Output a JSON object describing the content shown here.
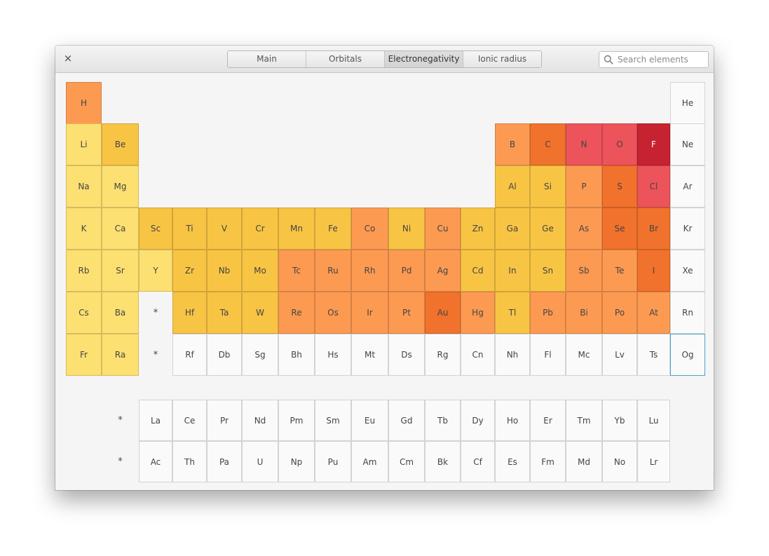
{
  "window": {
    "close_label": "×",
    "tabs": [
      {
        "label": "Main",
        "active": false
      },
      {
        "label": "Orbitals",
        "active": false
      },
      {
        "label": "Electronegativity",
        "active": true
      },
      {
        "label": "Ionic radius",
        "active": false
      }
    ],
    "search": {
      "value": "",
      "placeholder": "Search elements"
    }
  },
  "colors": {
    "pale_yellow": "#fde072",
    "yellow": "#f8c444",
    "light_orange": "#fd9a52",
    "orange": "#f1722c",
    "red_pink": "#ec535a",
    "crimson": "#c72230",
    "none": "#fafafa",
    "selected_border": "#4aa5c8"
  },
  "periodic_table": {
    "elements": [
      {
        "symbol": "H",
        "period": 1,
        "group": 1,
        "color": "light_orange"
      },
      {
        "symbol": "He",
        "period": 1,
        "group": 18,
        "color": "none"
      },
      {
        "symbol": "Li",
        "period": 2,
        "group": 1,
        "color": "pale_yellow"
      },
      {
        "symbol": "Be",
        "period": 2,
        "group": 2,
        "color": "yellow"
      },
      {
        "symbol": "B",
        "period": 2,
        "group": 13,
        "color": "light_orange"
      },
      {
        "symbol": "C",
        "period": 2,
        "group": 14,
        "color": "orange"
      },
      {
        "symbol": "N",
        "period": 2,
        "group": 15,
        "color": "red_pink"
      },
      {
        "symbol": "O",
        "period": 2,
        "group": 16,
        "color": "red_pink"
      },
      {
        "symbol": "F",
        "period": 2,
        "group": 17,
        "color": "crimson"
      },
      {
        "symbol": "Ne",
        "period": 2,
        "group": 18,
        "color": "none"
      },
      {
        "symbol": "Na",
        "period": 3,
        "group": 1,
        "color": "pale_yellow"
      },
      {
        "symbol": "Mg",
        "period": 3,
        "group": 2,
        "color": "pale_yellow"
      },
      {
        "symbol": "Al",
        "period": 3,
        "group": 13,
        "color": "yellow"
      },
      {
        "symbol": "Si",
        "period": 3,
        "group": 14,
        "color": "yellow"
      },
      {
        "symbol": "P",
        "period": 3,
        "group": 15,
        "color": "light_orange"
      },
      {
        "symbol": "S",
        "period": 3,
        "group": 16,
        "color": "orange"
      },
      {
        "symbol": "Cl",
        "period": 3,
        "group": 17,
        "color": "red_pink"
      },
      {
        "symbol": "Ar",
        "period": 3,
        "group": 18,
        "color": "none"
      },
      {
        "symbol": "K",
        "period": 4,
        "group": 1,
        "color": "pale_yellow"
      },
      {
        "symbol": "Ca",
        "period": 4,
        "group": 2,
        "color": "pale_yellow"
      },
      {
        "symbol": "Sc",
        "period": 4,
        "group": 3,
        "color": "yellow"
      },
      {
        "symbol": "Ti",
        "period": 4,
        "group": 4,
        "color": "yellow"
      },
      {
        "symbol": "V",
        "period": 4,
        "group": 5,
        "color": "yellow"
      },
      {
        "symbol": "Cr",
        "period": 4,
        "group": 6,
        "color": "yellow"
      },
      {
        "symbol": "Mn",
        "period": 4,
        "group": 7,
        "color": "yellow"
      },
      {
        "symbol": "Fe",
        "period": 4,
        "group": 8,
        "color": "yellow"
      },
      {
        "symbol": "Co",
        "period": 4,
        "group": 9,
        "color": "light_orange"
      },
      {
        "symbol": "Ni",
        "period": 4,
        "group": 10,
        "color": "yellow"
      },
      {
        "symbol": "Cu",
        "period": 4,
        "group": 11,
        "color": "light_orange"
      },
      {
        "symbol": "Zn",
        "period": 4,
        "group": 12,
        "color": "yellow"
      },
      {
        "symbol": "Ga",
        "period": 4,
        "group": 13,
        "color": "yellow"
      },
      {
        "symbol": "Ge",
        "period": 4,
        "group": 14,
        "color": "yellow"
      },
      {
        "symbol": "As",
        "period": 4,
        "group": 15,
        "color": "light_orange"
      },
      {
        "symbol": "Se",
        "period": 4,
        "group": 16,
        "color": "orange"
      },
      {
        "symbol": "Br",
        "period": 4,
        "group": 17,
        "color": "orange"
      },
      {
        "symbol": "Kr",
        "period": 4,
        "group": 18,
        "color": "none"
      },
      {
        "symbol": "Rb",
        "period": 5,
        "group": 1,
        "color": "pale_yellow"
      },
      {
        "symbol": "Sr",
        "period": 5,
        "group": 2,
        "color": "pale_yellow"
      },
      {
        "symbol": "Y",
        "period": 5,
        "group": 3,
        "color": "pale_yellow"
      },
      {
        "symbol": "Zr",
        "period": 5,
        "group": 4,
        "color": "yellow"
      },
      {
        "symbol": "Nb",
        "period": 5,
        "group": 5,
        "color": "yellow"
      },
      {
        "symbol": "Mo",
        "period": 5,
        "group": 6,
        "color": "yellow"
      },
      {
        "symbol": "Tc",
        "period": 5,
        "group": 7,
        "color": "light_orange"
      },
      {
        "symbol": "Ru",
        "period": 5,
        "group": 8,
        "color": "light_orange"
      },
      {
        "symbol": "Rh",
        "period": 5,
        "group": 9,
        "color": "light_orange"
      },
      {
        "symbol": "Pd",
        "period": 5,
        "group": 10,
        "color": "light_orange"
      },
      {
        "symbol": "Ag",
        "period": 5,
        "group": 11,
        "color": "light_orange"
      },
      {
        "symbol": "Cd",
        "period": 5,
        "group": 12,
        "color": "yellow"
      },
      {
        "symbol": "In",
        "period": 5,
        "group": 13,
        "color": "yellow"
      },
      {
        "symbol": "Sn",
        "period": 5,
        "group": 14,
        "color": "yellow"
      },
      {
        "symbol": "Sb",
        "period": 5,
        "group": 15,
        "color": "light_orange"
      },
      {
        "symbol": "Te",
        "period": 5,
        "group": 16,
        "color": "light_orange"
      },
      {
        "symbol": "I",
        "period": 5,
        "group": 17,
        "color": "orange"
      },
      {
        "symbol": "Xe",
        "period": 5,
        "group": 18,
        "color": "none"
      },
      {
        "symbol": "Cs",
        "period": 6,
        "group": 1,
        "color": "pale_yellow"
      },
      {
        "symbol": "Ba",
        "period": 6,
        "group": 2,
        "color": "pale_yellow"
      },
      {
        "symbol": "Hf",
        "period": 6,
        "group": 4,
        "color": "yellow"
      },
      {
        "symbol": "Ta",
        "period": 6,
        "group": 5,
        "color": "yellow"
      },
      {
        "symbol": "W",
        "period": 6,
        "group": 6,
        "color": "yellow"
      },
      {
        "symbol": "Re",
        "period": 6,
        "group": 7,
        "color": "light_orange"
      },
      {
        "symbol": "Os",
        "period": 6,
        "group": 8,
        "color": "light_orange"
      },
      {
        "symbol": "Ir",
        "period": 6,
        "group": 9,
        "color": "light_orange"
      },
      {
        "symbol": "Pt",
        "period": 6,
        "group": 10,
        "color": "light_orange"
      },
      {
        "symbol": "Au",
        "period": 6,
        "group": 11,
        "color": "orange"
      },
      {
        "symbol": "Hg",
        "period": 6,
        "group": 12,
        "color": "light_orange"
      },
      {
        "symbol": "Tl",
        "period": 6,
        "group": 13,
        "color": "yellow"
      },
      {
        "symbol": "Pb",
        "period": 6,
        "group": 14,
        "color": "light_orange"
      },
      {
        "symbol": "Bi",
        "period": 6,
        "group": 15,
        "color": "light_orange"
      },
      {
        "symbol": "Po",
        "period": 6,
        "group": 16,
        "color": "light_orange"
      },
      {
        "symbol": "At",
        "period": 6,
        "group": 17,
        "color": "light_orange"
      },
      {
        "symbol": "Rn",
        "period": 6,
        "group": 18,
        "color": "none"
      },
      {
        "symbol": "Fr",
        "period": 7,
        "group": 1,
        "color": "pale_yellow"
      },
      {
        "symbol": "Ra",
        "period": 7,
        "group": 2,
        "color": "pale_yellow"
      },
      {
        "symbol": "Rf",
        "period": 7,
        "group": 4,
        "color": "none"
      },
      {
        "symbol": "Db",
        "period": 7,
        "group": 5,
        "color": "none"
      },
      {
        "symbol": "Sg",
        "period": 7,
        "group": 6,
        "color": "none"
      },
      {
        "symbol": "Bh",
        "period": 7,
        "group": 7,
        "color": "none"
      },
      {
        "symbol": "Hs",
        "period": 7,
        "group": 8,
        "color": "none"
      },
      {
        "symbol": "Mt",
        "period": 7,
        "group": 9,
        "color": "none"
      },
      {
        "symbol": "Ds",
        "period": 7,
        "group": 10,
        "color": "none"
      },
      {
        "symbol": "Rg",
        "period": 7,
        "group": 11,
        "color": "none"
      },
      {
        "symbol": "Cn",
        "period": 7,
        "group": 12,
        "color": "none"
      },
      {
        "symbol": "Nh",
        "period": 7,
        "group": 13,
        "color": "none"
      },
      {
        "symbol": "Fl",
        "period": 7,
        "group": 14,
        "color": "none"
      },
      {
        "symbol": "Mc",
        "period": 7,
        "group": 15,
        "color": "none"
      },
      {
        "symbol": "Lv",
        "period": 7,
        "group": 16,
        "color": "none"
      },
      {
        "symbol": "Ts",
        "period": 7,
        "group": 17,
        "color": "none"
      },
      {
        "symbol": "Og",
        "period": 7,
        "group": 18,
        "color": "none",
        "selected": true
      },
      {
        "symbol": "La",
        "period": 9,
        "group": 3,
        "color": "none"
      },
      {
        "symbol": "Ce",
        "period": 9,
        "group": 4,
        "color": "none"
      },
      {
        "symbol": "Pr",
        "period": 9,
        "group": 5,
        "color": "none"
      },
      {
        "symbol": "Nd",
        "period": 9,
        "group": 6,
        "color": "none"
      },
      {
        "symbol": "Pm",
        "period": 9,
        "group": 7,
        "color": "none"
      },
      {
        "symbol": "Sm",
        "period": 9,
        "group": 8,
        "color": "none"
      },
      {
        "symbol": "Eu",
        "period": 9,
        "group": 9,
        "color": "none"
      },
      {
        "symbol": "Gd",
        "period": 9,
        "group": 10,
        "color": "none"
      },
      {
        "symbol": "Tb",
        "period": 9,
        "group": 11,
        "color": "none"
      },
      {
        "symbol": "Dy",
        "period": 9,
        "group": 12,
        "color": "none"
      },
      {
        "symbol": "Ho",
        "period": 9,
        "group": 13,
        "color": "none"
      },
      {
        "symbol": "Er",
        "period": 9,
        "group": 14,
        "color": "none"
      },
      {
        "symbol": "Tm",
        "period": 9,
        "group": 15,
        "color": "none"
      },
      {
        "symbol": "Yb",
        "period": 9,
        "group": 16,
        "color": "none"
      },
      {
        "symbol": "Lu",
        "period": 9,
        "group": 17,
        "color": "none"
      },
      {
        "symbol": "Ac",
        "period": 10,
        "group": 3,
        "color": "none"
      },
      {
        "symbol": "Th",
        "period": 10,
        "group": 4,
        "color": "none"
      },
      {
        "symbol": "Pa",
        "period": 10,
        "group": 5,
        "color": "none"
      },
      {
        "symbol": "U",
        "period": 10,
        "group": 6,
        "color": "none"
      },
      {
        "symbol": "Np",
        "period": 10,
        "group": 7,
        "color": "none"
      },
      {
        "symbol": "Pu",
        "period": 10,
        "group": 8,
        "color": "none"
      },
      {
        "symbol": "Am",
        "period": 10,
        "group": 9,
        "color": "none"
      },
      {
        "symbol": "Cm",
        "period": 10,
        "group": 10,
        "color": "none"
      },
      {
        "symbol": "Bk",
        "period": 10,
        "group": 11,
        "color": "none"
      },
      {
        "symbol": "Cf",
        "period": 10,
        "group": 12,
        "color": "none"
      },
      {
        "symbol": "Es",
        "period": 10,
        "group": 13,
        "color": "none"
      },
      {
        "symbol": "Fm",
        "period": 10,
        "group": 14,
        "color": "none"
      },
      {
        "symbol": "Md",
        "period": 10,
        "group": 15,
        "color": "none"
      },
      {
        "symbol": "No",
        "period": 10,
        "group": 16,
        "color": "none"
      },
      {
        "symbol": "Lr",
        "period": 10,
        "group": 17,
        "color": "none"
      }
    ],
    "markers": [
      {
        "label": "*",
        "period": 6,
        "group": 3
      },
      {
        "label": "*",
        "period": 7,
        "group": 3
      },
      {
        "label": "*",
        "period": 9,
        "group": 2
      },
      {
        "label": "*",
        "period": 10,
        "group": 2
      }
    ]
  }
}
